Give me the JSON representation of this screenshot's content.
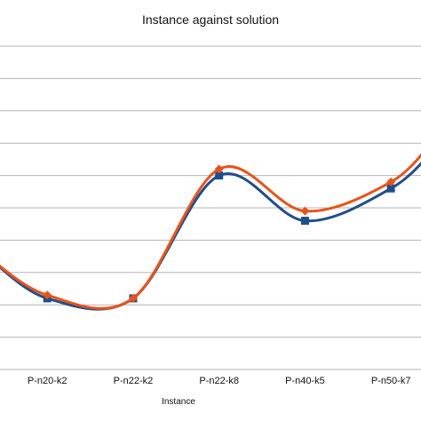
{
  "chart_data": {
    "type": "line",
    "title": "Instance against solution",
    "xlabel": "Instance",
    "ylabel": "",
    "categories": [
      "P-n20-k2",
      "P-n22-k2",
      "P-n22-k8",
      "P-n40-k5",
      "P-n50-k7"
    ],
    "x_visible_range": [
      -0.55,
      4.35
    ],
    "ylim": [
      0,
      10
    ],
    "grid": true,
    "legend": "none",
    "smooth": true,
    "series": [
      {
        "color": "#1f4e8a",
        "marker": "square",
        "lead_in": 3.5,
        "values": [
          2.2,
          2.2,
          6.0,
          4.6,
          5.6
        ],
        "tail": 6.8
      },
      {
        "color": "#e8531a",
        "marker": "diamond",
        "lead_in": 3.5,
        "values": [
          2.3,
          2.2,
          6.2,
          4.9,
          5.8
        ],
        "tail": 7.1
      }
    ]
  }
}
